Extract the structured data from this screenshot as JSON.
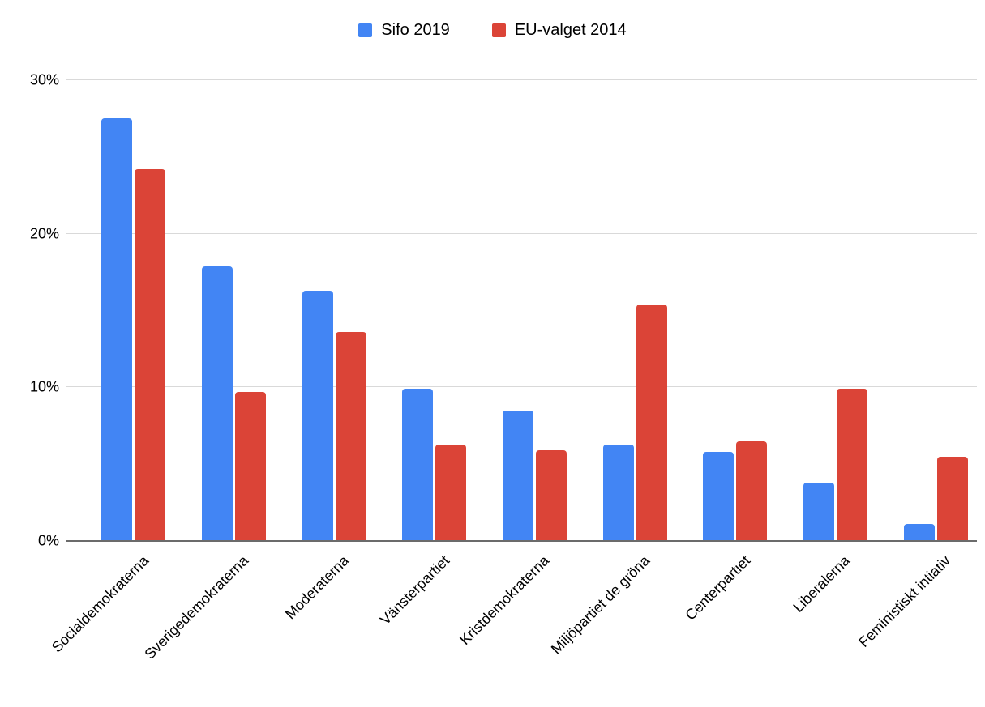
{
  "chart_data": {
    "type": "bar",
    "title": "",
    "xlabel": "",
    "ylabel": "",
    "categories": [
      "Socialdemokraterna",
      "Sverigedemokraterna",
      "Moderaterna",
      "Vänsterpartiet",
      "Kristdemokraterna",
      "Miljöpartiet de gröna",
      "Centerpartiet",
      "Liberalerna",
      "Feministiskt intiativ"
    ],
    "series": [
      {
        "name": "Sifo 2019",
        "color": "#4285F4",
        "values": [
          27.5,
          17.9,
          16.3,
          9.9,
          8.5,
          6.3,
          5.8,
          3.8,
          1.1
        ]
      },
      {
        "name": "EU-valget 2014",
        "color": "#DB4437",
        "values": [
          24.2,
          9.7,
          13.6,
          6.3,
          5.9,
          15.4,
          6.5,
          9.9,
          5.5
        ]
      }
    ],
    "ylim": [
      0,
      30
    ],
    "yticks": [
      30,
      20,
      10,
      0
    ],
    "ytick_labels": [
      "30%",
      "20%",
      "10%",
      "0%"
    ],
    "grid": true,
    "legend_position": "top",
    "value_unit": "%"
  },
  "colors": {
    "gridline": "#d9d9d9",
    "axis_line": "#6b6b6b",
    "text": "#000000",
    "background": "#ffffff"
  }
}
